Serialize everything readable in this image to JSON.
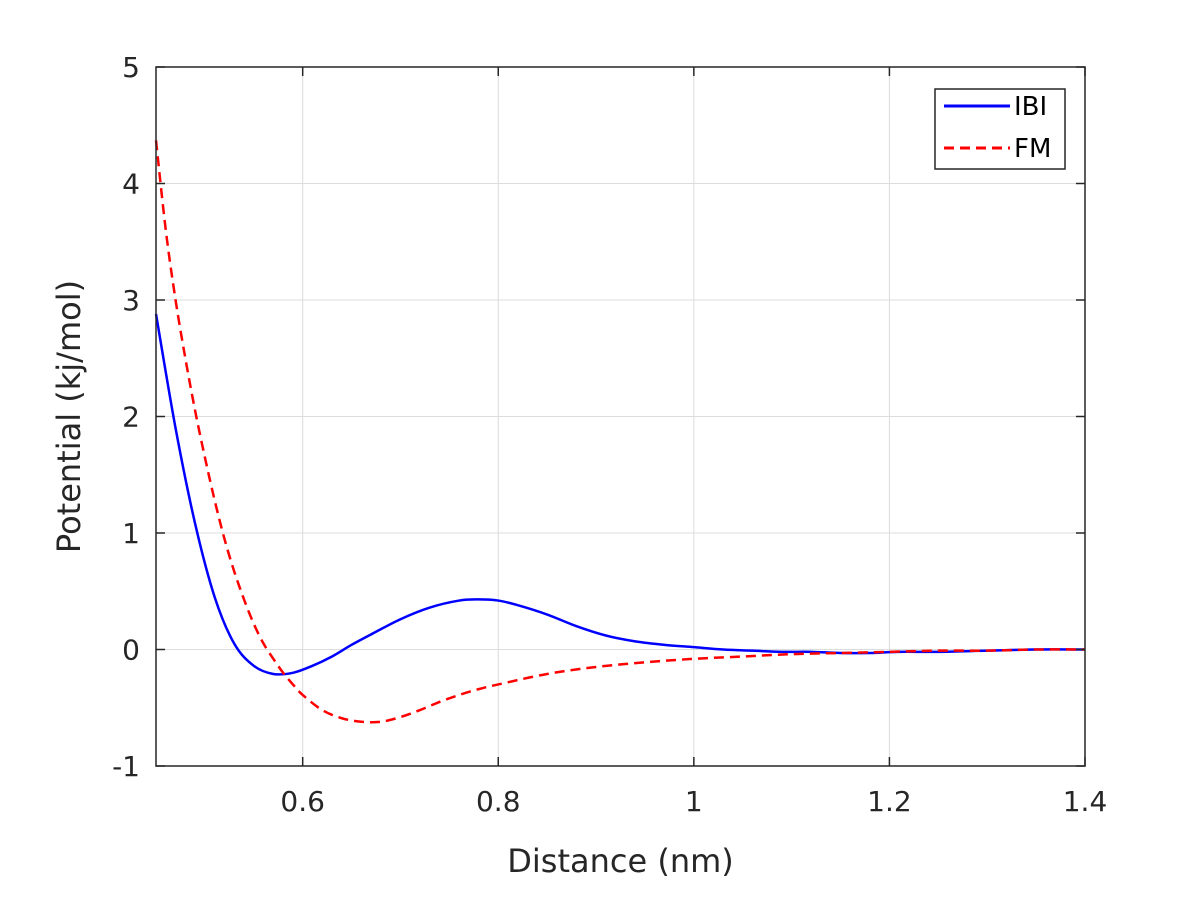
{
  "chart_data": {
    "type": "line",
    "title": "",
    "xlabel": "Distance  (nm)",
    "ylabel": "Potential (kj/mol)",
    "xlim": [
      0.45,
      1.4
    ],
    "ylim": [
      -1,
      5
    ],
    "xticks": [
      0.6,
      0.8,
      1.0,
      1.2,
      1.4
    ],
    "xtick_labels": [
      "0.6",
      "0.8",
      "1",
      "1.2",
      "1.4"
    ],
    "yticks": [
      -1,
      0,
      1,
      2,
      3,
      4,
      5
    ],
    "ytick_labels": [
      "-1",
      "0",
      "1",
      "2",
      "3",
      "4",
      "5"
    ],
    "grid": true,
    "legend_position": "top-right",
    "series": [
      {
        "name": "IBI",
        "color": "#0000ff",
        "style": "solid",
        "x": [
          0.45,
          0.47,
          0.49,
          0.51,
          0.53,
          0.55,
          0.57,
          0.59,
          0.61,
          0.63,
          0.65,
          0.67,
          0.7,
          0.73,
          0.76,
          0.78,
          0.8,
          0.82,
          0.85,
          0.88,
          0.91,
          0.94,
          0.97,
          1.0,
          1.03,
          1.06,
          1.09,
          1.12,
          1.15,
          1.18,
          1.21,
          1.25,
          1.3,
          1.35,
          1.4
        ],
        "y": [
          2.88,
          1.9,
          1.08,
          0.45,
          0.05,
          -0.14,
          -0.21,
          -0.2,
          -0.14,
          -0.06,
          0.04,
          0.13,
          0.26,
          0.36,
          0.42,
          0.43,
          0.42,
          0.38,
          0.3,
          0.2,
          0.12,
          0.07,
          0.04,
          0.02,
          0.0,
          -0.01,
          -0.02,
          -0.02,
          -0.03,
          -0.03,
          -0.02,
          -0.02,
          -0.01,
          0.0,
          0.0
        ]
      },
      {
        "name": "FM",
        "color": "#ff0000",
        "style": "dashed",
        "x": [
          0.45,
          0.46,
          0.47,
          0.48,
          0.49,
          0.5,
          0.51,
          0.52,
          0.53,
          0.54,
          0.55,
          0.56,
          0.57,
          0.58,
          0.59,
          0.6,
          0.62,
          0.64,
          0.66,
          0.68,
          0.7,
          0.72,
          0.74,
          0.76,
          0.78,
          0.8,
          0.85,
          0.9,
          0.95,
          1.0,
          1.05,
          1.1,
          1.15,
          1.2,
          1.25,
          1.3,
          1.35,
          1.4
        ],
        "y": [
          4.37,
          3.6,
          3.0,
          2.5,
          2.05,
          1.65,
          1.28,
          0.95,
          0.67,
          0.43,
          0.22,
          0.05,
          -0.08,
          -0.2,
          -0.3,
          -0.39,
          -0.52,
          -0.59,
          -0.62,
          -0.62,
          -0.58,
          -0.52,
          -0.45,
          -0.39,
          -0.34,
          -0.3,
          -0.21,
          -0.15,
          -0.11,
          -0.08,
          -0.06,
          -0.04,
          -0.03,
          -0.02,
          -0.01,
          -0.01,
          0.0,
          0.0
        ]
      }
    ]
  }
}
